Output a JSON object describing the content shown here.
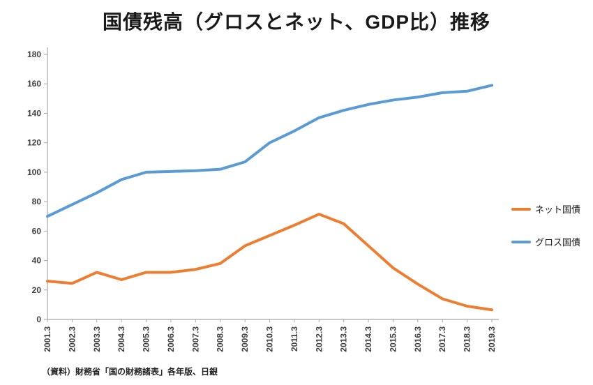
{
  "chart_data": {
    "type": "line",
    "title": "国債残高（グロスとネット、GDP比）推移",
    "categories": [
      "2001.3",
      "2002.3",
      "2003.3",
      "2004.3",
      "2005.3",
      "2006.3",
      "2007.3",
      "2008.3",
      "2009.3",
      "2010.3",
      "2011.3",
      "2012.3",
      "2013.3",
      "2014.3",
      "2015.3",
      "2016.3",
      "2017.3",
      "2018.3",
      "2019.3"
    ],
    "series": [
      {
        "name": "ネット国債",
        "color": "#ED7D31",
        "values": [
          26,
          24.5,
          32,
          27,
          32,
          32,
          34,
          38,
          50,
          57,
          64,
          71.5,
          65,
          50,
          35,
          24,
          14,
          9,
          6.5
        ]
      },
      {
        "name": "グロス国債",
        "color": "#5B9BD5",
        "values": [
          70,
          78,
          86,
          95,
          100,
          100.5,
          101,
          102,
          107,
          120,
          128,
          137,
          142,
          146,
          149,
          151,
          154,
          155,
          159
        ]
      }
    ],
    "ylim": [
      0,
      180
    ],
    "y_tick_step": 20,
    "grid": false,
    "legend_position": "right",
    "xlabel": "",
    "ylabel": ""
  },
  "source_note": "（資料）財務省「国の財務諸表」各年版、日銀",
  "colors": {
    "axis": "#a6a6a6",
    "tick_label": "#404040",
    "title": "#1a1a1a"
  }
}
